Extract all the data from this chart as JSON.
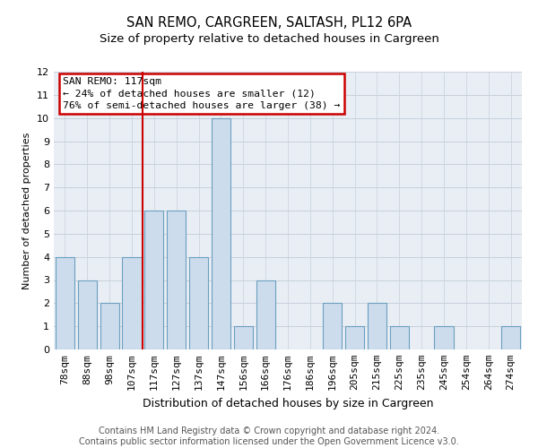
{
  "title": "SAN REMO, CARGREEN, SALTASH, PL12 6PA",
  "subtitle": "Size of property relative to detached houses in Cargreen",
  "xlabel": "Distribution of detached houses by size in Cargreen",
  "ylabel": "Number of detached properties",
  "categories": [
    "78sqm",
    "88sqm",
    "98sqm",
    "107sqm",
    "117sqm",
    "127sqm",
    "137sqm",
    "147sqm",
    "156sqm",
    "166sqm",
    "176sqm",
    "186sqm",
    "196sqm",
    "205sqm",
    "215sqm",
    "225sqm",
    "235sqm",
    "245sqm",
    "254sqm",
    "264sqm",
    "274sqm"
  ],
  "values": [
    4,
    3,
    2,
    4,
    6,
    6,
    4,
    10,
    1,
    3,
    0,
    0,
    2,
    1,
    2,
    1,
    0,
    1,
    0,
    0,
    1
  ],
  "bar_color": "#cddcec",
  "bar_edgecolor": "#6a9fc0",
  "grid_color": "#c8d0da",
  "background_color": "#e8eef4",
  "red_line_index": 4,
  "annotation_text_line1": "SAN REMO: 117sqm",
  "annotation_text_line2": "← 24% of detached houses are smaller (12)",
  "annotation_text_line3": "76% of semi-detached houses are larger (38) →",
  "annotation_box_color": "#ffffff",
  "annotation_box_edgecolor": "#cc0000",
  "red_line_color": "#cc0000",
  "ylim": [
    0,
    12
  ],
  "yticks": [
    0,
    1,
    2,
    3,
    4,
    5,
    6,
    7,
    8,
    9,
    10,
    11,
    12
  ],
  "footer_line1": "Contains HM Land Registry data © Crown copyright and database right 2024.",
  "footer_line2": "Contains public sector information licensed under the Open Government Licence v3.0.",
  "title_fontsize": 10.5,
  "subtitle_fontsize": 9.5,
  "xlabel_fontsize": 9,
  "ylabel_fontsize": 8,
  "tick_fontsize": 8,
  "footer_fontsize": 7
}
